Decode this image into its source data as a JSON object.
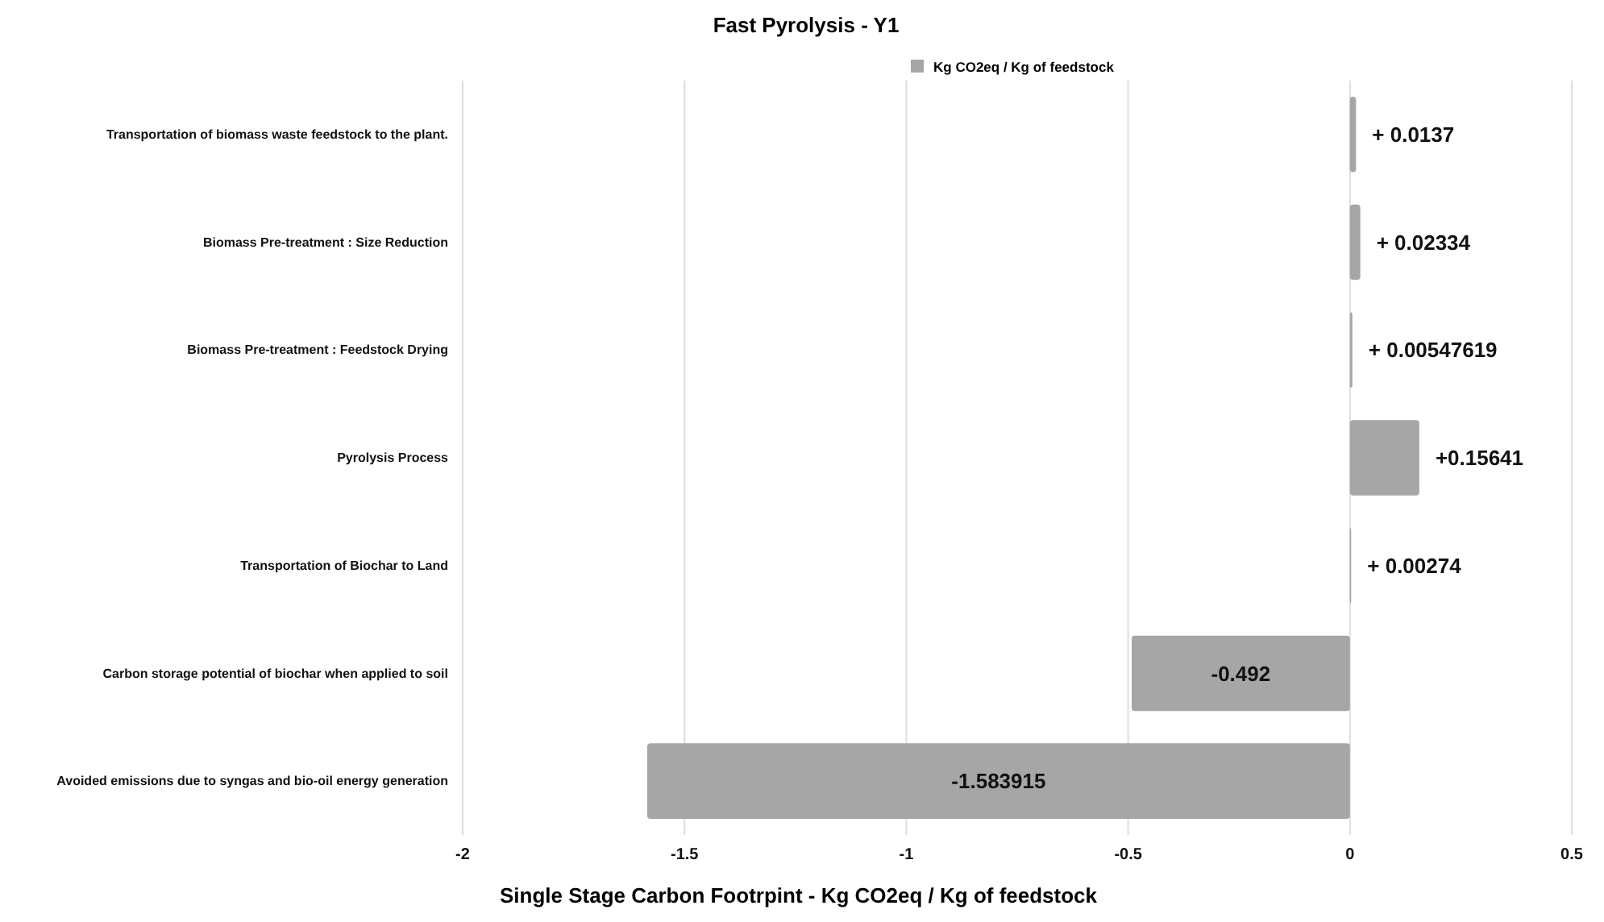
{
  "chart_data": {
    "type": "bar",
    "orientation": "horizontal",
    "title": "Fast Pyrolysis  - Y1",
    "xlabel": "Single Stage Carbon Footrpint - Kg CO2eq / Kg of feedstock",
    "categories": [
      "Transportation of biomass waste  feedstock to the plant.",
      "Biomass Pre-treatment : Size Reduction",
      "Biomass Pre-treatment : Feedstock Drying",
      "Pyrolysis Process",
      "Transportation of Biochar to Land",
      "Carbon storage potential of biochar when applied to soil",
      "Avoided emissions due to syngas and bio-oil energy generation"
    ],
    "series": [
      {
        "name": "Kg CO2eq / Kg of feedstock",
        "color": "#a6a6a6",
        "values": [
          0.0137,
          0.02334,
          0.00547619,
          0.15641,
          0.00274,
          -0.492,
          -1.583915
        ],
        "value_labels": [
          "+ 0.0137",
          "+ 0.02334",
          "+ 0.00547619",
          "+0.15641",
          "+ 0.00274",
          "-0.492",
          "-1.583915"
        ]
      }
    ],
    "xlim": [
      -2,
      0.5
    ],
    "xticks": [
      -2,
      -1.5,
      -1,
      -0.5,
      0,
      0.5
    ],
    "grid": "x",
    "legend": "top right"
  }
}
